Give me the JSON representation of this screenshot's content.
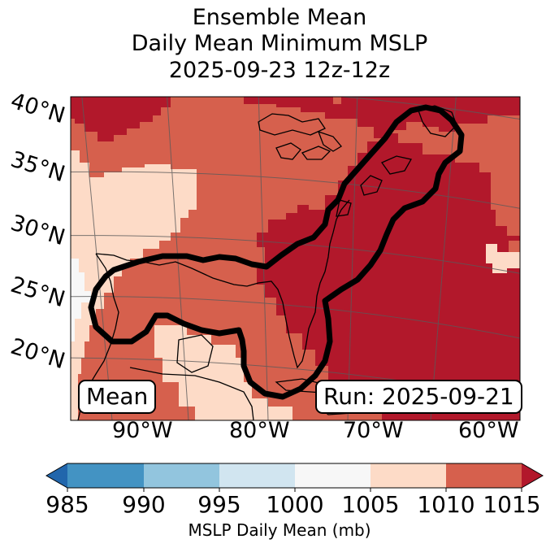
{
  "title": {
    "line1": "Ensemble Mean",
    "line2": "Daily Mean Minimum MSLP",
    "line3": "2025-09-23 12z-12z"
  },
  "badges": {
    "mean": "Mean",
    "run": "Run: 2025-09-21"
  },
  "axes": {
    "latitudes": [
      "40°N",
      "35°N",
      "30°N",
      "25°N",
      "20°N"
    ],
    "longitudes": [
      "90°W",
      "80°W",
      "70°W",
      "60°W"
    ]
  },
  "colorbar": {
    "label": "MSLP Daily Mean (mb)",
    "ticks": [
      "985",
      "990",
      "995",
      "1000",
      "1005",
      "1010",
      "1015"
    ],
    "colors": {
      "below": "#2166ac",
      "b985_990": "#4393c3",
      "b990_995": "#92c5de",
      "b995_1000": "#d1e5f0",
      "b1000_1005": "#f7f7f7",
      "b1005_1010": "#fddbc7",
      "b1010_1015": "#d6604d",
      "above": "#b2182b"
    }
  },
  "contour": {
    "color": "#000000",
    "description": "ensemble outline"
  }
}
